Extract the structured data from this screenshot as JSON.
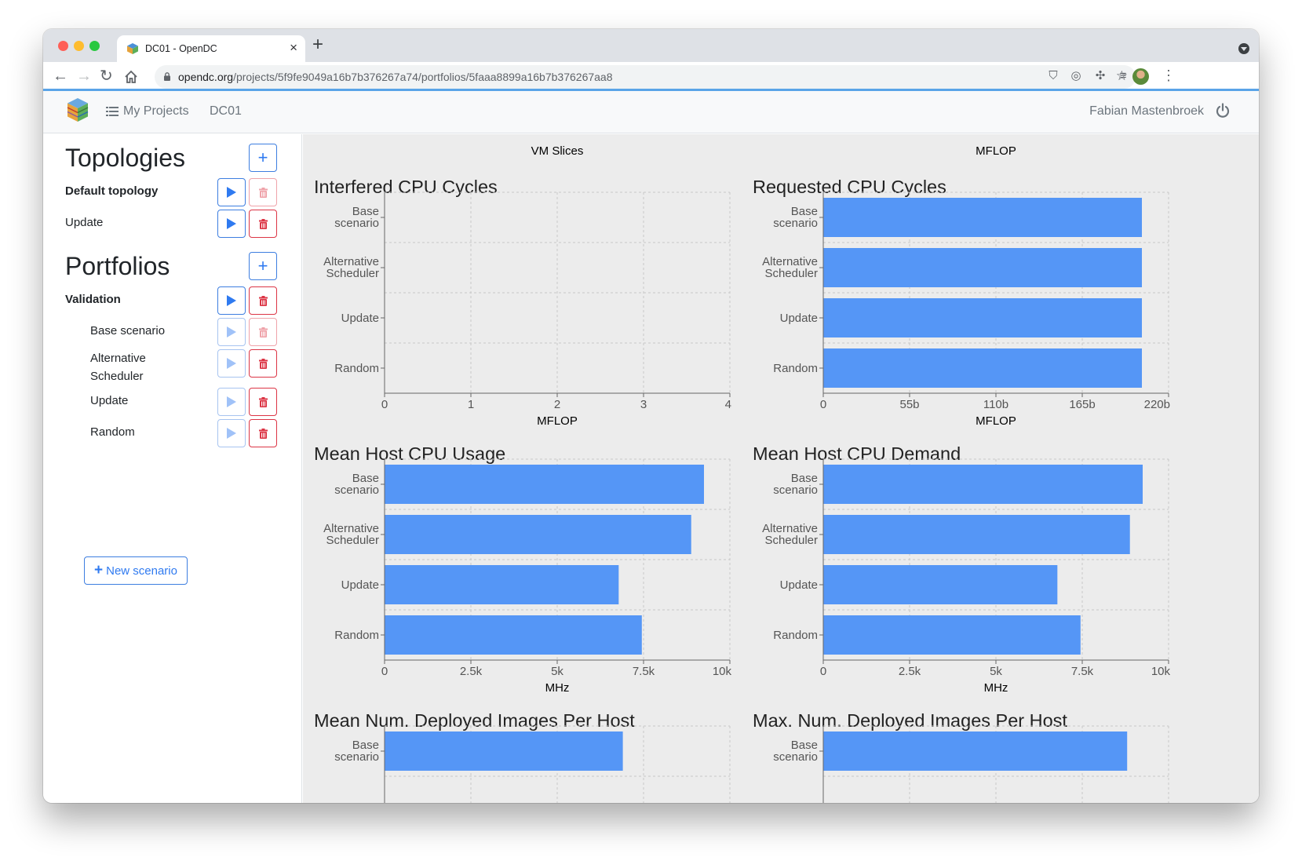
{
  "browser": {
    "tab_title": "DC01 - OpenDC",
    "url_host": "opendc.org",
    "url_path": "/projects/5f9fe9049a16b7b376267a74/portfolios/5faaa8899a16b7b376267aa8"
  },
  "navbar": {
    "my_projects": "My Projects",
    "breadcrumb": "DC01",
    "user_name": "Fabian Mastenbroek"
  },
  "sidebar": {
    "topologies_heading": "Topologies",
    "topologies": [
      {
        "label": "Default topology"
      },
      {
        "label": "Update"
      }
    ],
    "portfolios_heading": "Portfolios",
    "portfolio": {
      "label": "Validation"
    },
    "scenarios": [
      {
        "label": "Base scenario"
      },
      {
        "label": "Alternative Scheduler"
      },
      {
        "label": "Update"
      },
      {
        "label": "Random"
      }
    ],
    "new_scenario_label": "New scenario"
  },
  "colors": {
    "bar": "#5596f6",
    "accent": "#2f7af0",
    "danger": "#dc3545"
  },
  "chart_data": [
    {
      "type": "bar",
      "orientation": "horizontal",
      "top_label": "VM Slices",
      "title": "Interfered CPU Cycles",
      "categories": [
        "Base scenario",
        "Alternative Scheduler",
        "Update",
        "Random"
      ],
      "values": [
        0,
        0,
        0,
        0
      ],
      "xlim": [
        0,
        4
      ],
      "ticks": [
        0,
        1,
        2,
        3,
        4
      ],
      "tick_labels": [
        "0",
        "1",
        "2",
        "3",
        "4"
      ],
      "xlabel": "MFLOP"
    },
    {
      "type": "bar",
      "orientation": "horizontal",
      "top_label": "MFLOP",
      "title": "Requested CPU Cycles",
      "categories": [
        "Base scenario",
        "Alternative Scheduler",
        "Update",
        "Random"
      ],
      "values": [
        203000000000,
        203000000000,
        203000000000,
        203000000000
      ],
      "xlim": [
        0,
        220000000000
      ],
      "ticks": [
        0,
        55000000000,
        110000000000,
        165000000000,
        220000000000
      ],
      "tick_labels": [
        "0",
        "55b",
        "110b",
        "165b",
        "220b"
      ],
      "xlabel": "MFLOP"
    },
    {
      "type": "bar",
      "orientation": "horizontal",
      "title": "Mean Host CPU Usage",
      "categories": [
        "Base scenario",
        "Alternative Scheduler",
        "Update",
        "Random"
      ],
      "values": [
        9250,
        8880,
        6780,
        7450
      ],
      "xlim": [
        0,
        10000
      ],
      "ticks": [
        0,
        2500,
        5000,
        7500,
        10000
      ],
      "tick_labels": [
        "0",
        "2.5k",
        "5k",
        "7.5k",
        "10k"
      ],
      "xlabel": "MHz"
    },
    {
      "type": "bar",
      "orientation": "horizontal",
      "title": "Mean Host CPU Demand",
      "categories": [
        "Base scenario",
        "Alternative Scheduler",
        "Update",
        "Random"
      ],
      "values": [
        9250,
        8880,
        6780,
        7450
      ],
      "xlim": [
        0,
        10000
      ],
      "ticks": [
        0,
        2500,
        5000,
        7500,
        10000
      ],
      "tick_labels": [
        "0",
        "2.5k",
        "5k",
        "7.5k",
        "10k"
      ],
      "xlabel": "MHz"
    },
    {
      "type": "bar",
      "orientation": "horizontal",
      "title": "Mean Num. Deployed Images Per Host",
      "categories": [
        "Base scenario"
      ],
      "values": [
        6.9
      ],
      "xlim": [
        0,
        10
      ]
    },
    {
      "type": "bar",
      "orientation": "horizontal",
      "title": "Max. Num. Deployed Images Per Host",
      "categories": [
        "Base scenario"
      ],
      "values": [
        8.8
      ],
      "xlim": [
        0,
        10
      ]
    }
  ]
}
